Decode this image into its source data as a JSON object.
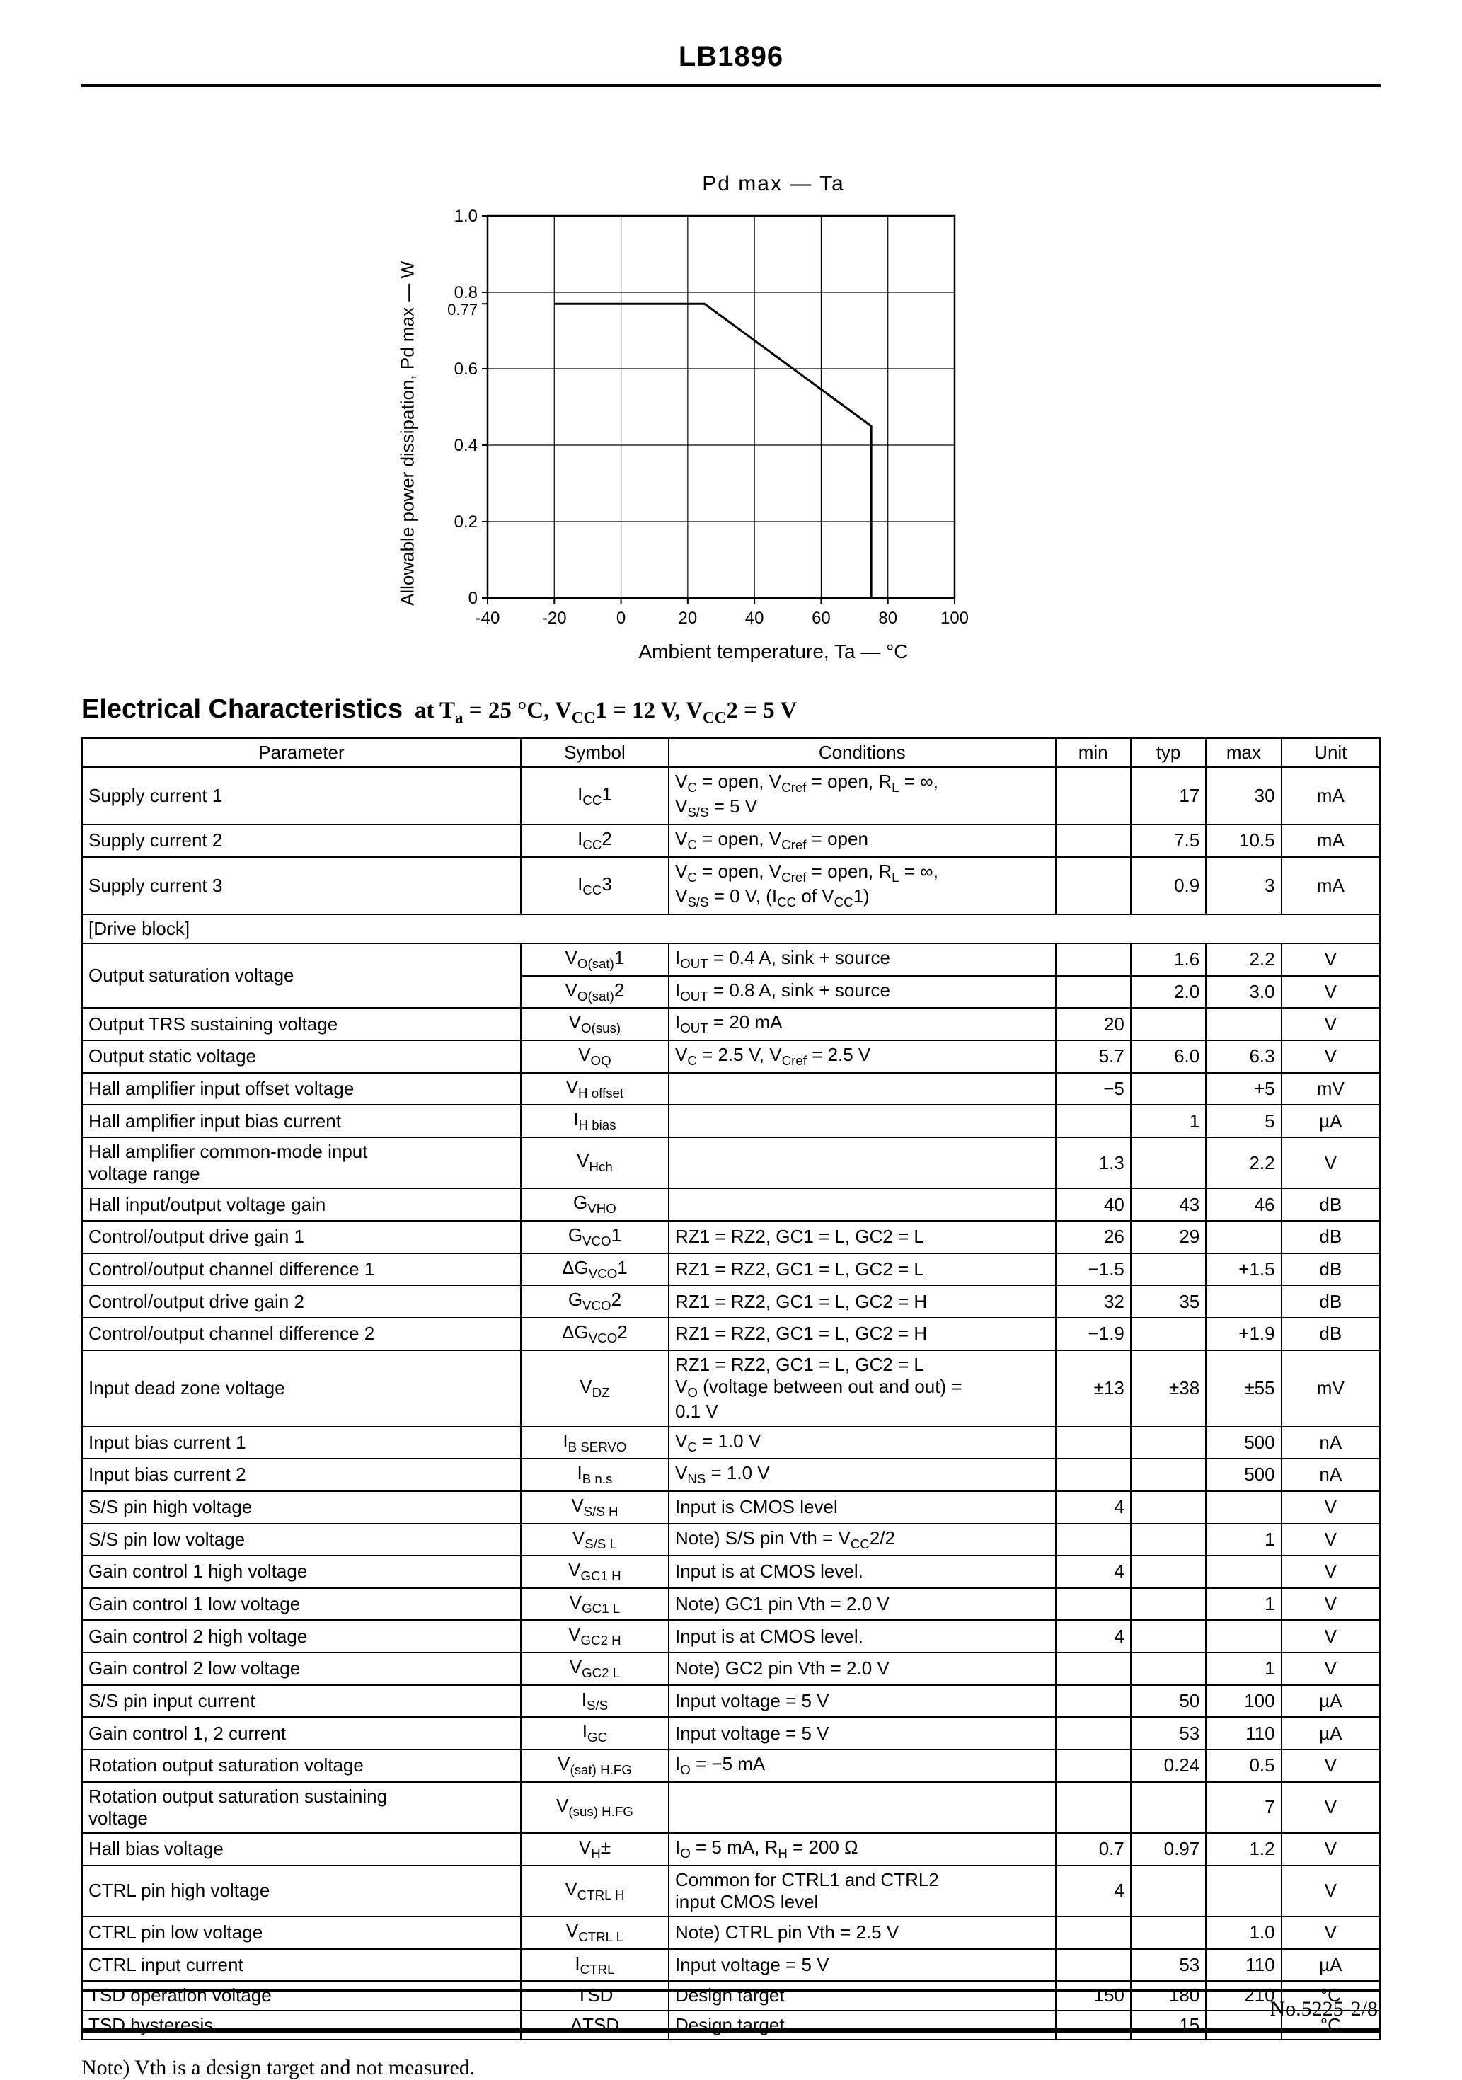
{
  "page": {
    "header_title": "LB1896",
    "note": "Note) Vth is a design target and not measured.",
    "footer_page_number": "No.5225-2/8"
  },
  "section": {
    "title_main": "Electrical Characteristics",
    "title_conditions": "at T_{a} = 25 °C, V_{CC}1 = 12 V, V_{CC}2 = 5 V"
  },
  "chart_data": {
    "type": "line",
    "title": "Pd max  —  Ta",
    "xlabel": "Ambient temperature, Ta — °C",
    "ylabel": "Allowable power dissipation, Pd max — W",
    "xlim": [
      -40,
      100
    ],
    "ylim": [
      0,
      1.0
    ],
    "xticks": [
      -40,
      -20,
      0,
      20,
      40,
      60,
      80,
      100
    ],
    "yticks": [
      0,
      0.2,
      0.4,
      0.6,
      0.8,
      1.0
    ],
    "ytick_extra": 0.77,
    "grid": true,
    "legend": "none",
    "series": [
      {
        "name": "Pd max derating curve",
        "points": [
          [
            -20,
            0.77
          ],
          [
            25,
            0.77
          ],
          [
            75,
            0.45
          ],
          [
            75,
            0
          ]
        ]
      }
    ]
  },
  "table": {
    "headers": [
      "Parameter",
      "Symbol",
      "Conditions",
      "min",
      "typ",
      "max",
      "Unit"
    ],
    "rows": [
      {
        "param": "Supply current 1",
        "symbol": "I_{CC}1",
        "cond": "V_{C} = open, V_{Cref} = open, R_{L} = ∞,\nV_{S/S} = 5 V",
        "min": "",
        "typ": "17",
        "max": "30",
        "unit": "mA"
      },
      {
        "param": "Supply current 2",
        "symbol": "I_{CC}2",
        "cond": "V_{C} = open, V_{Cref} = open",
        "min": "",
        "typ": "7.5",
        "max": "10.5",
        "unit": "mA"
      },
      {
        "param": "Supply current 3",
        "symbol": "I_{CC}3",
        "cond": "V_{C} = open, V_{Cref} = open, R_{L} = ∞,\nV_{S/S} = 0 V, (I_{CC} of V_{CC}1)",
        "min": "",
        "typ": "0.9",
        "max": "3",
        "unit": "mA"
      },
      {
        "section": "[Drive block]"
      },
      {
        "param": "Output saturation voltage",
        "param_rowspan": 2,
        "symbol": "V_{O(sat)}1",
        "cond": "I_{OUT} = 0.4 A, sink + source",
        "min": "",
        "typ": "1.6",
        "max": "2.2",
        "unit": "V"
      },
      {
        "param": null,
        "symbol": "V_{O(sat)}2",
        "cond": "I_{OUT} = 0.8 A, sink + source",
        "min": "",
        "typ": "2.0",
        "max": "3.0",
        "unit": "V"
      },
      {
        "param": "Output TRS sustaining voltage",
        "symbol": "V_{O(sus)}",
        "cond": "I_{OUT} = 20 mA",
        "min": "20",
        "typ": "",
        "max": "",
        "unit": "V"
      },
      {
        "param": "Output static voltage",
        "symbol": "V_{OQ}",
        "cond": "V_{C} = 2.5 V, V_{Cref} = 2.5 V",
        "min": "5.7",
        "typ": "6.0",
        "max": "6.3",
        "unit": "V"
      },
      {
        "param": "Hall amplifier input offset voltage",
        "symbol": "V_{H offset}",
        "cond": "",
        "min": "−5",
        "typ": "",
        "max": "+5",
        "unit": "mV"
      },
      {
        "param": "Hall amplifier input bias current",
        "symbol": "I_{H bias}",
        "cond": "",
        "min": "",
        "typ": "1",
        "max": "5",
        "unit": "µA"
      },
      {
        "param": "Hall amplifier common-mode input\nvoltage range",
        "symbol": "V_{Hch}",
        "cond": "",
        "min": "1.3",
        "typ": "",
        "max": "2.2",
        "unit": "V"
      },
      {
        "param": "Hall input/output voltage gain",
        "symbol": "G_{VHO}",
        "cond": "",
        "min": "40",
        "typ": "43",
        "max": "46",
        "unit": "dB"
      },
      {
        "param": "Control/output drive gain 1",
        "symbol": "G_{VCO}1",
        "cond": "RZ1 = RZ2, GC1 = L, GC2 = L",
        "min": "26",
        "typ": "29",
        "max": "",
        "unit": "dB"
      },
      {
        "param": "Control/output channel difference 1",
        "symbol": "ΔG_{VCO}1",
        "cond": "RZ1 = RZ2, GC1 = L, GC2 = L",
        "min": "−1.5",
        "typ": "",
        "max": "+1.5",
        "unit": "dB"
      },
      {
        "param": "Control/output drive gain 2",
        "symbol": "G_{VCO}2",
        "cond": "RZ1 = RZ2, GC1 = L, GC2 = H",
        "min": "32",
        "typ": "35",
        "max": "",
        "unit": "dB"
      },
      {
        "param": "Control/output channel difference 2",
        "symbol": "ΔG_{VCO}2",
        "cond": "RZ1 = RZ2, GC1 = L, GC2 = H",
        "min": "−1.9",
        "typ": "",
        "max": "+1.9",
        "unit": "dB"
      },
      {
        "param": "Input dead zone voltage",
        "symbol": "V_{DZ}",
        "cond": "RZ1 = RZ2, GC1 = L, GC2 = L\nV_{O} (voltage between out and out) =\n0.1 V",
        "min": "±13",
        "typ": "±38",
        "max": "±55",
        "unit": "mV"
      },
      {
        "param": "Input bias current 1",
        "symbol": "I_{B SERVO}",
        "cond": "V_{C} = 1.0 V",
        "min": "",
        "typ": "",
        "max": "500",
        "unit": "nA"
      },
      {
        "param": "Input bias current 2",
        "symbol": "I_{B n.s}",
        "cond": "V_{NS} = 1.0 V",
        "min": "",
        "typ": "",
        "max": "500",
        "unit": "nA"
      },
      {
        "param": "S/S pin high voltage",
        "symbol": "V_{S/S H}",
        "cond": "Input is CMOS level",
        "min": "4",
        "typ": "",
        "max": "",
        "unit": "V"
      },
      {
        "param": "S/S pin low voltage",
        "symbol": "V_{S/S L}",
        "cond": "Note) S/S pin Vth = V_{CC}2/2",
        "min": "",
        "typ": "",
        "max": "1",
        "unit": "V"
      },
      {
        "param": "Gain control 1 high voltage",
        "symbol": "V_{GC1 H}",
        "cond": "Input is at CMOS level.",
        "min": "4",
        "typ": "",
        "max": "",
        "unit": "V"
      },
      {
        "param": "Gain control 1 low voltage",
        "symbol": "V_{GC1 L}",
        "cond": "Note) GC1 pin Vth = 2.0 V",
        "min": "",
        "typ": "",
        "max": "1",
        "unit": "V"
      },
      {
        "param": "Gain control 2 high voltage",
        "symbol": "V_{GC2 H}",
        "cond": "Input is at CMOS level.",
        "min": "4",
        "typ": "",
        "max": "",
        "unit": "V"
      },
      {
        "param": "Gain control 2 low voltage",
        "symbol": "V_{GC2 L}",
        "cond": "Note) GC2 pin Vth = 2.0 V",
        "min": "",
        "typ": "",
        "max": "1",
        "unit": "V"
      },
      {
        "param": "S/S pin input current",
        "symbol": "I_{S/S}",
        "cond": "Input voltage = 5 V",
        "min": "",
        "typ": "50",
        "max": "100",
        "unit": "µA"
      },
      {
        "param": "Gain control 1, 2 current",
        "symbol": "I_{GC}",
        "cond": "Input voltage = 5 V",
        "min": "",
        "typ": "53",
        "max": "110",
        "unit": "µA"
      },
      {
        "param": "Rotation output saturation voltage",
        "symbol": "V_{(sat) H.FG}",
        "cond": "I_{O} = −5 mA",
        "min": "",
        "typ": "0.24",
        "max": "0.5",
        "unit": "V"
      },
      {
        "param": "Rotation output saturation sustaining\nvoltage",
        "symbol": "V_{(sus) H.FG}",
        "cond": "",
        "min": "",
        "typ": "",
        "max": "7",
        "unit": "V"
      },
      {
        "param": "Hall bias voltage",
        "symbol": "V_{H}±",
        "cond": "I_{O} = 5 mA, R_{H} = 200 Ω",
        "min": "0.7",
        "typ": "0.97",
        "max": "1.2",
        "unit": "V"
      },
      {
        "param": "CTRL pin high voltage",
        "symbol": "V_{CTRL H}",
        "cond": "Common for CTRL1 and CTRL2\ninput CMOS level",
        "min": "4",
        "typ": "",
        "max": "",
        "unit": "V"
      },
      {
        "param": "CTRL pin low voltage",
        "symbol": "V_{CTRL L}",
        "cond": "Note) CTRL pin Vth = 2.5 V",
        "min": "",
        "typ": "",
        "max": "1.0",
        "unit": "V"
      },
      {
        "param": "CTRL input current",
        "symbol": "I_{CTRL}",
        "cond": "Input voltage = 5 V",
        "min": "",
        "typ": "53",
        "max": "110",
        "unit": "µA"
      },
      {
        "param": "TSD operation voltage",
        "symbol": "TSD",
        "cond": "Design target",
        "min": "150",
        "typ": "180",
        "max": "210",
        "unit": "°C"
      },
      {
        "param": "TSD hysteresis",
        "symbol": "ΔTSD",
        "cond": "Design target",
        "min": "",
        "typ": "15",
        "max": "",
        "unit": "°C"
      }
    ]
  }
}
